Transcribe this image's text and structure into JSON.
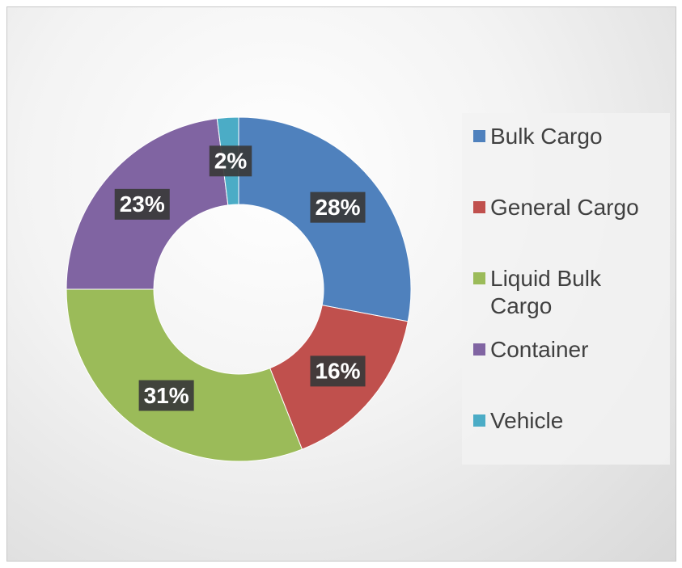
{
  "chart_data": {
    "type": "donut",
    "categories": [
      "Bulk Cargo",
      "General Cargo",
      "Liquid Bulk Cargo",
      "Container",
      "Vehicle"
    ],
    "values": [
      28,
      16,
      31,
      23,
      2
    ],
    "value_labels": [
      "28%",
      "16%",
      "31%",
      "23%",
      "2%"
    ],
    "colors": [
      "#4f81bd",
      "#c0504d",
      "#9bbb59",
      "#8064a2",
      "#4bacc6"
    ],
    "legend": "right"
  }
}
